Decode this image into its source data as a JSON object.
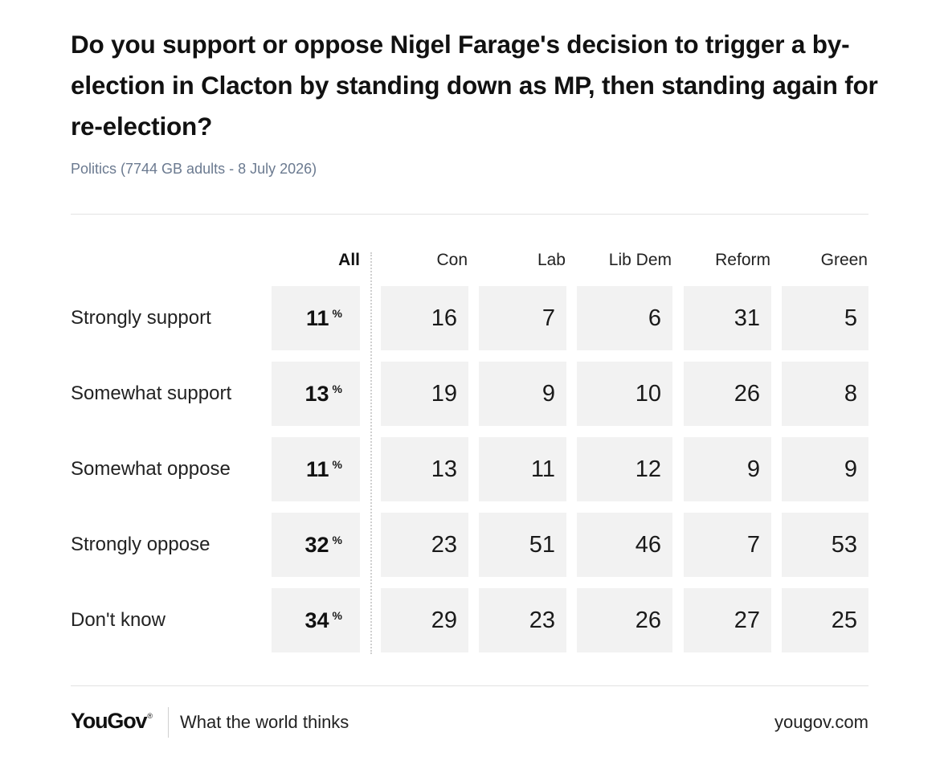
{
  "header": {
    "title": "Do you support or oppose Nigel Farage's decision to trigger a by-election in Clacton by standing down as MP, then standing again for re-election?",
    "subtitle": "Politics (7744 GB adults - 8 July 2026)"
  },
  "chart_data": {
    "type": "table",
    "title": "Do you support or oppose Nigel Farage's decision to trigger a by-election in Clacton by standing down as MP, then standing again for re-election?",
    "columns": [
      "All",
      "Con",
      "Lab",
      "Lib Dem",
      "Reform",
      "Green"
    ],
    "rows": [
      {
        "label": "Strongly support",
        "all": "11",
        "values": [
          "16",
          "7",
          "6",
          "31",
          "5"
        ]
      },
      {
        "label": "Somewhat support",
        "all": "13",
        "values": [
          "19",
          "9",
          "10",
          "26",
          "8"
        ]
      },
      {
        "label": "Somewhat oppose",
        "all": "11",
        "values": [
          "13",
          "11",
          "12",
          "9",
          "9"
        ]
      },
      {
        "label": "Strongly oppose",
        "all": "32",
        "values": [
          "23",
          "51",
          "46",
          "7",
          "53"
        ]
      },
      {
        "label": "Don't know",
        "all": "34",
        "values": [
          "29",
          "23",
          "26",
          "27",
          "25"
        ]
      }
    ],
    "unit_symbol": "%",
    "cell_background": "#f2f2f2"
  },
  "footer": {
    "brand": "YouGov",
    "brand_mark": "®",
    "tagline": "What the world thinks",
    "url": "yougov.com"
  }
}
